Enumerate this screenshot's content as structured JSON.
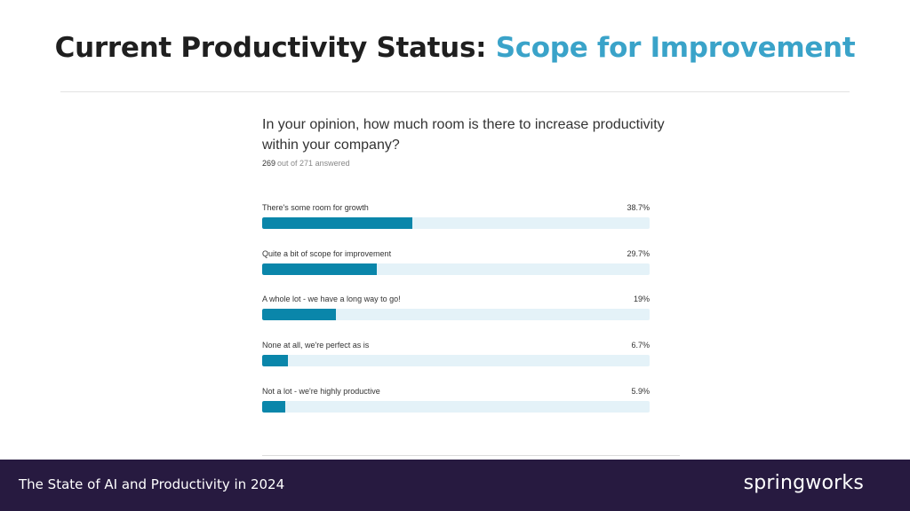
{
  "header": {
    "title_main": "Current Productivity Status:",
    "title_accent": "Scope for Improvement"
  },
  "survey": {
    "question": "In your opinion, how much room is there to increase productivity within your company?",
    "answered_count": "269",
    "answered_rest": "out of 271 answered"
  },
  "chart_data": {
    "type": "bar",
    "orientation": "horizontal",
    "categories": [
      "There's some room for growth",
      "Quite a bit of scope for improvement",
      "A whole lot - we have a long way to go!",
      "None at all, we're perfect as is",
      "Not a lot - we're highly productive"
    ],
    "values": [
      38.7,
      29.7,
      19,
      6.7,
      5.9
    ],
    "value_labels": [
      "38.7%",
      "29.7%",
      "19%",
      "6.7%",
      "5.9%"
    ],
    "xlim": [
      0,
      100
    ],
    "title": "In your opinion, how much room is there to increase productivity within your company?",
    "bar_color": "#0a86aa",
    "track_color": "#e4f2f8"
  },
  "footer": {
    "report_title": "The State of AI and Productivity in 2024",
    "brand": "springworks"
  },
  "colors": {
    "accent": "#3aa3c9",
    "footer_bg": "#271a40"
  }
}
